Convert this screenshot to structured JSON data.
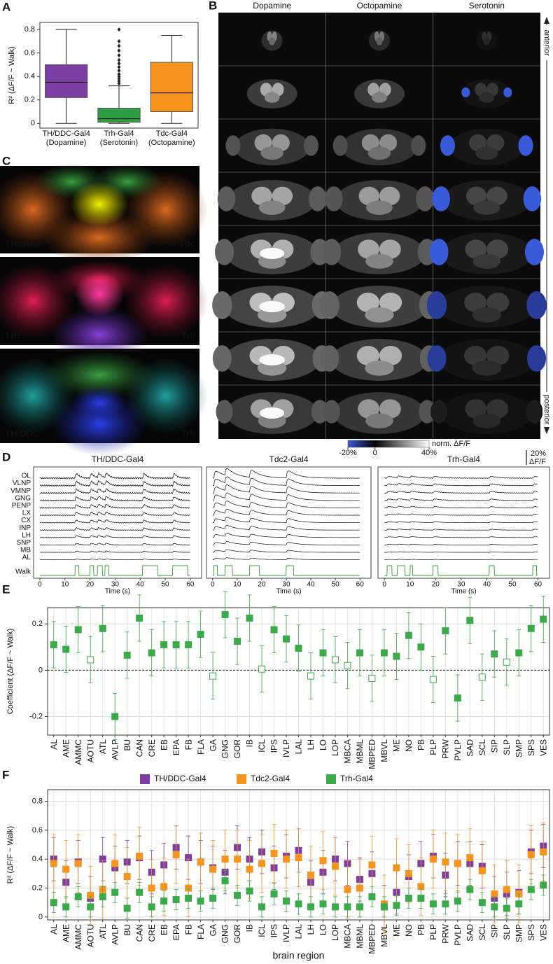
{
  "panel_labels": [
    "A",
    "B",
    "C",
    "D",
    "E",
    "F"
  ],
  "panel_b": {
    "columns": [
      "Dopamine",
      "Octopamine",
      "Serotonin"
    ],
    "axis_top": "anterior",
    "axis_bottom": "posterior"
  },
  "panel_c": {
    "images": [
      {
        "left": "TH/DDC",
        "right": "Tdc"
      },
      {
        "left": "Tdc",
        "right": "Trh"
      },
      {
        "left": "TH/DDC",
        "right": "Trh"
      }
    ],
    "left_colors": [
      "#5fd25f",
      "#ff3030",
      "#5fd25f"
    ],
    "right_colors": [
      "#ff3030",
      "#3aa0ff",
      "#3aa0ff"
    ]
  },
  "chart_data": [
    {
      "type": "box",
      "ylabel": "R² (ΔF/F ~ Walk)",
      "categories": [
        "TH/DDC-Gal4",
        "Trh-Gal4",
        "Tdc-Gal4"
      ],
      "category_subtitles": [
        "(Dopamine)",
        "(Serotonin)",
        "(Octopamine)"
      ],
      "colors": [
        "#7d3ea3",
        "#2e9e44",
        "#f7941d"
      ],
      "boxes": [
        {
          "low": 0,
          "q1": 0.22,
          "median": 0.35,
          "q3": 0.5,
          "high": 0.8,
          "outliers": []
        },
        {
          "low": 0,
          "q1": 0.01,
          "median": 0.04,
          "q3": 0.13,
          "high": 0.32,
          "outliers": [
            0.34,
            0.36,
            0.38,
            0.4,
            0.42,
            0.45,
            0.48,
            0.51,
            0.54,
            0.58,
            0.62,
            0.66,
            0.7,
            0.8
          ]
        },
        {
          "low": 0,
          "q1": 0.1,
          "median": 0.26,
          "q3": 0.52,
          "high": 0.75,
          "outliers": []
        }
      ],
      "ylim": [
        -0.04,
        0.86
      ],
      "yticks": [
        0,
        0.2,
        0.4,
        0.6,
        0.8
      ]
    },
    {
      "type": "colorbar",
      "label": "norm. ΔF/F",
      "colors": [
        "#3a5bd9",
        "#000000",
        "#ffffff"
      ],
      "lim": [
        -20,
        40
      ],
      "ticks": [
        {
          "value": -20,
          "label": "-20%"
        },
        0,
        {
          "value": 40,
          "label": "40%"
        }
      ]
    },
    {
      "type": "traces",
      "panels": [
        {
          "title": "TH/DDC-Gal4",
          "walk_bouts": [
            [
              14,
              15.5
            ],
            [
              20,
              21.5
            ],
            [
              23,
              25
            ],
            [
              26,
              27.5
            ],
            [
              41,
              47
            ],
            [
              53,
              59
            ]
          ]
        },
        {
          "title": "Tdc2-Gal4",
          "walk_bouts": [
            [
              0.5,
              2
            ],
            [
              5,
              8
            ],
            [
              15,
              19
            ],
            [
              30,
              33
            ]
          ]
        },
        {
          "title": "Trh-Gal4",
          "walk_bouts": [
            [
              1,
              3
            ],
            [
              5,
              8
            ],
            [
              10,
              11
            ],
            [
              19,
              21
            ],
            [
              41,
              43
            ],
            [
              58,
              59.5
            ]
          ]
        }
      ],
      "rows": [
        "OL",
        "VLNP",
        "VMNP",
        "GNG",
        "PENP",
        "LX",
        "CX",
        "INP",
        "LH",
        "SNP",
        "MB",
        "AL"
      ],
      "walk_label": "Walk",
      "walk_color": "#2ca02c",
      "xlabel": "Time (s)",
      "xlim": [
        -2.5,
        64.5
      ],
      "xticks": [
        0,
        10,
        20,
        30,
        40,
        50,
        60
      ],
      "scalebar": {
        "value": 20,
        "label": "20%",
        "unit": "ΔF/F"
      }
    },
    {
      "type": "errorpoints",
      "ylabel": "Coefficient (ΔF/F ~ Walk)",
      "categories": [
        "AL",
        "AME",
        "AMMC",
        "AOTU",
        "ATL",
        "AVLP",
        "BU",
        "CAN",
        "CRE",
        "EB",
        "EPA",
        "FB",
        "FLA",
        "GA",
        "GNG",
        "GOR",
        "IB",
        "ICL",
        "IPS",
        "IVLP",
        "LAL",
        "LH",
        "LO",
        "LOP",
        "MBCA",
        "MBML",
        "MBPED",
        "MBVL",
        "ME",
        "NO",
        "PB",
        "PLP",
        "PRW",
        "PVLP",
        "SAD",
        "SCL",
        "SIP",
        "SLP",
        "SMP",
        "SPS",
        "VES"
      ],
      "values": [
        0.11,
        0.09,
        0.175,
        0.045,
        0.18,
        -0.2,
        0.065,
        0.225,
        0.075,
        0.11,
        0.11,
        0.11,
        0.155,
        -0.025,
        0.24,
        0.125,
        0.225,
        0.005,
        0.175,
        0.135,
        0.095,
        -0.025,
        0.075,
        0.045,
        0.02,
        0.075,
        -0.035,
        0.075,
        0.06,
        0.15,
        0.1,
        -0.04,
        0.17,
        -0.12,
        0.215,
        -0.03,
        0.07,
        0.035,
        0.075,
        0.18,
        0.22
      ],
      "significant": [
        true,
        true,
        true,
        false,
        true,
        true,
        true,
        true,
        true,
        true,
        true,
        true,
        true,
        false,
        true,
        true,
        true,
        false,
        true,
        true,
        true,
        false,
        true,
        false,
        false,
        true,
        false,
        true,
        true,
        true,
        true,
        false,
        true,
        true,
        true,
        false,
        true,
        false,
        true,
        true,
        true
      ],
      "error": 0.1,
      "color": "#3aaa4a",
      "hline": 0,
      "ylim": [
        -0.28,
        0.27
      ],
      "yticks": [
        -0.2,
        0,
        0.2
      ],
      "grid": true
    },
    {
      "type": "errorpoints",
      "ylabel": "R² (ΔF/F ~ Walk)",
      "xlabel": "brain region",
      "categories": [
        "AL",
        "AME",
        "AMMC",
        "AOTU",
        "ATL",
        "AVLP",
        "BU",
        "CAN",
        "CRE",
        "EB",
        "EPA",
        "FB",
        "FLA",
        "GA",
        "GNG",
        "GOR",
        "IB",
        "ICL",
        "IPS",
        "IVLP",
        "LAL",
        "LH",
        "LO",
        "LOP",
        "MBCA",
        "MBML",
        "MBPED",
        "MBVL",
        "ME",
        "NO",
        "PB",
        "PLP",
        "PRW",
        "PVLP",
        "SAD",
        "SCL",
        "SIP",
        "SLP",
        "SMP",
        "SPS",
        "VES"
      ],
      "series": [
        {
          "name": "TH/DDC-Gal4",
          "color": "#7d3ea3",
          "error": 0.15,
          "values": [
            0.4,
            0.24,
            0.38,
            0.13,
            0.4,
            0.34,
            0.38,
            0.41,
            0.31,
            0.36,
            0.48,
            0.41,
            0.38,
            0.34,
            0.31,
            0.48,
            0.4,
            0.45,
            0.34,
            0.42,
            0.46,
            0.24,
            0.31,
            0.4,
            0.37,
            0.26,
            0.3,
            0.07,
            0.17,
            0.28,
            0.37,
            0.42,
            0.29,
            0.37,
            0.37,
            0.35,
            0.13,
            0.16,
            0.17,
            0.45,
            0.49
          ]
        },
        {
          "name": "Tdc2-Gal4",
          "color": "#f7941d",
          "error": 0.2,
          "values": [
            0.37,
            0.33,
            0.37,
            0.15,
            0.19,
            0.37,
            0.28,
            0.42,
            0.2,
            0.21,
            0.43,
            0.2,
            0.38,
            0.33,
            0.4,
            0.4,
            0.33,
            0.37,
            0.44,
            0.4,
            0.41,
            0.29,
            0.39,
            0.35,
            0.19,
            0.2,
            0.36,
            0.09,
            0.34,
            0.3,
            0.21,
            0.4,
            0.38,
            0.37,
            0.41,
            0.32,
            0.16,
            0.19,
            0.16,
            0.43,
            0.45
          ]
        },
        {
          "name": "Trh-Gal4",
          "color": "#3aaa4a",
          "error": 0.07,
          "values": [
            0.1,
            0.07,
            0.14,
            0.07,
            0.14,
            0.17,
            0.06,
            0.17,
            0.07,
            0.11,
            0.12,
            0.13,
            0.11,
            0.13,
            0.25,
            0.15,
            0.18,
            0.07,
            0.16,
            0.11,
            0.09,
            0.07,
            0.09,
            0.07,
            0.07,
            0.07,
            0.14,
            0.07,
            0.08,
            0.13,
            0.13,
            0.09,
            0.09,
            0.11,
            0.19,
            0.1,
            0.07,
            0.06,
            0.09,
            0.19,
            0.22
          ]
        }
      ],
      "ylim": [
        -0.02,
        0.88
      ],
      "yticks": [
        0,
        0.2,
        0.4,
        0.6,
        0.8
      ],
      "grid": true
    }
  ]
}
